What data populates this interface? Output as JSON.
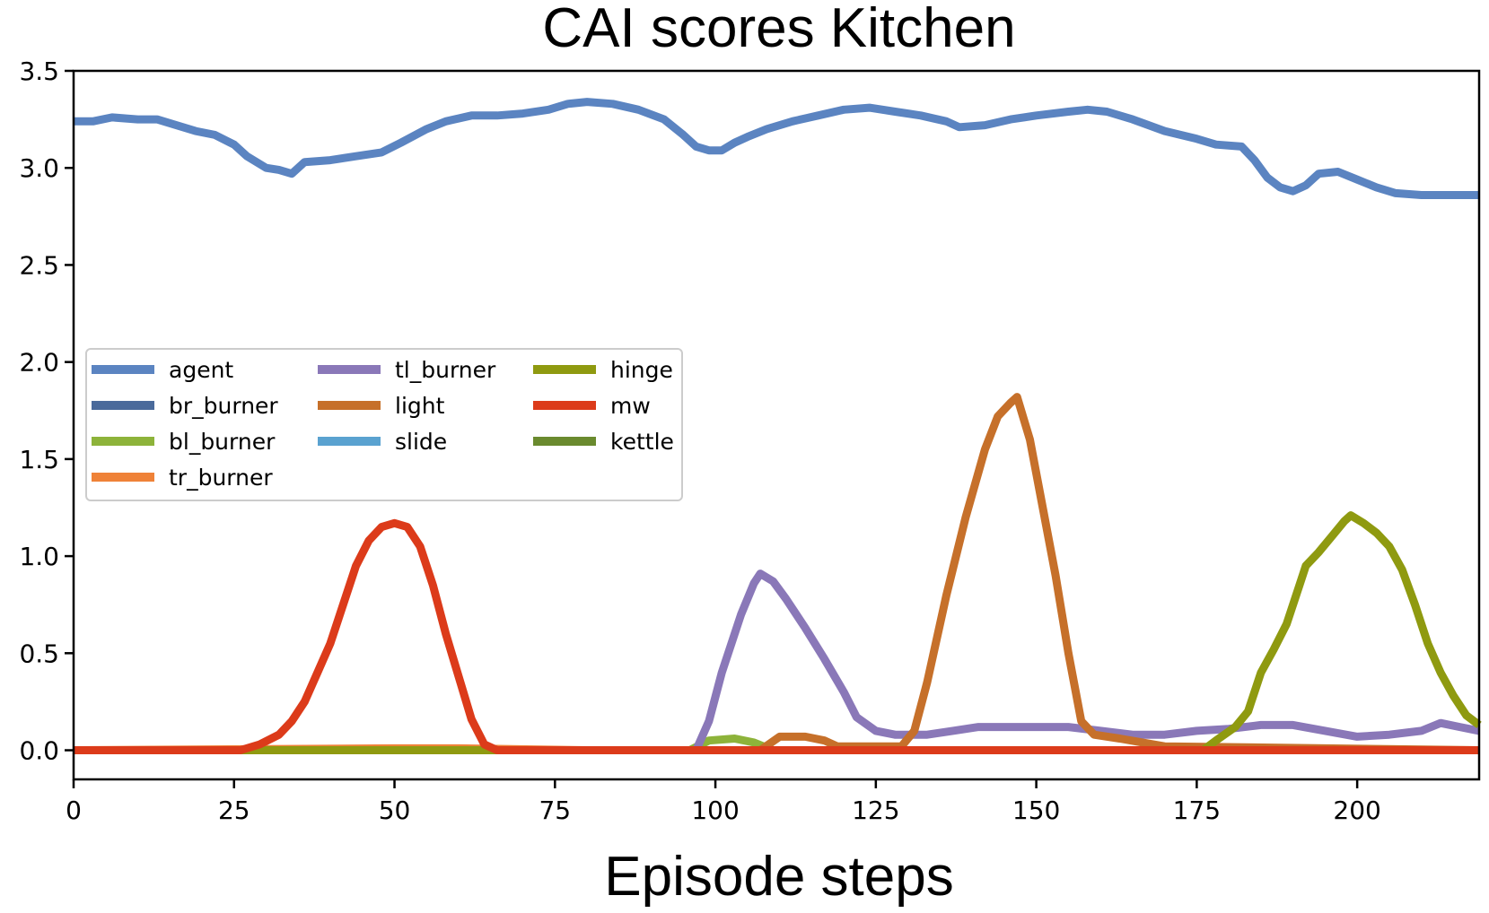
{
  "chart_data": {
    "type": "line",
    "title": "CAI scores Kitchen",
    "xlabel": "Episode steps",
    "ylabel": "",
    "xlim": [
      0,
      219
    ],
    "ylim": [
      -0.15,
      3.5
    ],
    "xticks": [
      0,
      25,
      50,
      75,
      100,
      125,
      150,
      175,
      200
    ],
    "xtick_labels": [
      "0",
      "25",
      "50",
      "75",
      "100",
      "125",
      "150",
      "175",
      "200"
    ],
    "yticks": [
      0.0,
      0.5,
      1.0,
      1.5,
      2.0,
      2.5,
      3.0,
      3.5
    ],
    "ytick_labels": [
      "0.0",
      "0.5",
      "1.0",
      "1.5",
      "2.0",
      "2.5",
      "3.0",
      "3.5"
    ],
    "grid": false,
    "legend_position": "center-left",
    "series": [
      {
        "name": "agent",
        "color": "#5b84c1",
        "points": [
          [
            0,
            3.24
          ],
          [
            3,
            3.24
          ],
          [
            6,
            3.26
          ],
          [
            10,
            3.25
          ],
          [
            13,
            3.25
          ],
          [
            16,
            3.22
          ],
          [
            19,
            3.19
          ],
          [
            22,
            3.17
          ],
          [
            25,
            3.12
          ],
          [
            27,
            3.06
          ],
          [
            30,
            3.0
          ],
          [
            32,
            2.99
          ],
          [
            34,
            2.97
          ],
          [
            36,
            3.03
          ],
          [
            40,
            3.04
          ],
          [
            44,
            3.06
          ],
          [
            48,
            3.08
          ],
          [
            51,
            3.13
          ],
          [
            55,
            3.2
          ],
          [
            58,
            3.24
          ],
          [
            62,
            3.27
          ],
          [
            66,
            3.27
          ],
          [
            70,
            3.28
          ],
          [
            74,
            3.3
          ],
          [
            77,
            3.33
          ],
          [
            80,
            3.34
          ],
          [
            84,
            3.33
          ],
          [
            88,
            3.3
          ],
          [
            92,
            3.25
          ],
          [
            95,
            3.17
          ],
          [
            97,
            3.11
          ],
          [
            99,
            3.09
          ],
          [
            101,
            3.09
          ],
          [
            103,
            3.13
          ],
          [
            105,
            3.16
          ],
          [
            108,
            3.2
          ],
          [
            112,
            3.24
          ],
          [
            116,
            3.27
          ],
          [
            120,
            3.3
          ],
          [
            124,
            3.31
          ],
          [
            128,
            3.29
          ],
          [
            132,
            3.27
          ],
          [
            136,
            3.24
          ],
          [
            138,
            3.21
          ],
          [
            142,
            3.22
          ],
          [
            146,
            3.25
          ],
          [
            150,
            3.27
          ],
          [
            155,
            3.29
          ],
          [
            158,
            3.3
          ],
          [
            161,
            3.29
          ],
          [
            165,
            3.25
          ],
          [
            170,
            3.19
          ],
          [
            175,
            3.15
          ],
          [
            178,
            3.12
          ],
          [
            182,
            3.11
          ],
          [
            184,
            3.04
          ],
          [
            186,
            2.95
          ],
          [
            188,
            2.9
          ],
          [
            190,
            2.88
          ],
          [
            192,
            2.91
          ],
          [
            194,
            2.97
          ],
          [
            197,
            2.98
          ],
          [
            200,
            2.94
          ],
          [
            203,
            2.9
          ],
          [
            206,
            2.87
          ],
          [
            210,
            2.86
          ],
          [
            219,
            2.86
          ]
        ]
      },
      {
        "name": "br_burner",
        "color": "#4a6a9b",
        "points": [
          [
            0,
            0.0
          ],
          [
            219,
            0.0
          ]
        ]
      },
      {
        "name": "bl_burner",
        "color": "#8db33a",
        "points": [
          [
            0,
            0.0
          ],
          [
            96,
            0.0
          ],
          [
            99,
            0.05
          ],
          [
            103,
            0.06
          ],
          [
            106,
            0.04
          ],
          [
            109,
            0.0
          ],
          [
            219,
            0.0
          ]
        ]
      },
      {
        "name": "tr_burner",
        "color": "#ef8238",
        "points": [
          [
            0,
            0.0
          ],
          [
            50,
            0.01
          ],
          [
            60,
            0.01
          ],
          [
            80,
            0.0
          ],
          [
            219,
            0.0
          ]
        ]
      },
      {
        "name": "tl_burner",
        "color": "#8a78b8",
        "points": [
          [
            0,
            0.0
          ],
          [
            97,
            0.0
          ],
          [
            99,
            0.15
          ],
          [
            101,
            0.4
          ],
          [
            104,
            0.7
          ],
          [
            106,
            0.86
          ],
          [
            107,
            0.91
          ],
          [
            109,
            0.87
          ],
          [
            111,
            0.78
          ],
          [
            114,
            0.63
          ],
          [
            117,
            0.47
          ],
          [
            120,
            0.3
          ],
          [
            122,
            0.17
          ],
          [
            125,
            0.1
          ],
          [
            128,
            0.08
          ],
          [
            133,
            0.08
          ],
          [
            137,
            0.1
          ],
          [
            141,
            0.12
          ],
          [
            145,
            0.12
          ],
          [
            150,
            0.12
          ],
          [
            155,
            0.12
          ],
          [
            160,
            0.1
          ],
          [
            165,
            0.08
          ],
          [
            170,
            0.08
          ],
          [
            175,
            0.1
          ],
          [
            180,
            0.11
          ],
          [
            185,
            0.13
          ],
          [
            190,
            0.13
          ],
          [
            195,
            0.1
          ],
          [
            200,
            0.07
          ],
          [
            205,
            0.08
          ],
          [
            210,
            0.1
          ],
          [
            213,
            0.14
          ],
          [
            216,
            0.12
          ],
          [
            219,
            0.1
          ]
        ]
      },
      {
        "name": "light",
        "color": "#c6702a",
        "points": [
          [
            0,
            0.0
          ],
          [
            107,
            0.0
          ],
          [
            110,
            0.07
          ],
          [
            114,
            0.07
          ],
          [
            117,
            0.05
          ],
          [
            119,
            0.02
          ],
          [
            129,
            0.02
          ],
          [
            131,
            0.1
          ],
          [
            133,
            0.35
          ],
          [
            136,
            0.8
          ],
          [
            139,
            1.2
          ],
          [
            142,
            1.55
          ],
          [
            144,
            1.72
          ],
          [
            146,
            1.79
          ],
          [
            147,
            1.82
          ],
          [
            149,
            1.6
          ],
          [
            151,
            1.25
          ],
          [
            153,
            0.9
          ],
          [
            155,
            0.5
          ],
          [
            157,
            0.15
          ],
          [
            159,
            0.08
          ],
          [
            163,
            0.06
          ],
          [
            170,
            0.02
          ],
          [
            219,
            0.0
          ]
        ]
      },
      {
        "name": "slide",
        "color": "#5aa2d0",
        "points": [
          [
            0,
            0.0
          ],
          [
            219,
            0.0
          ]
        ]
      },
      {
        "name": "hinge",
        "color": "#8f9a10",
        "points": [
          [
            0,
            0.0
          ],
          [
            176,
            0.0
          ],
          [
            178,
            0.05
          ],
          [
            181,
            0.12
          ],
          [
            183,
            0.2
          ],
          [
            185,
            0.4
          ],
          [
            187,
            0.52
          ],
          [
            189,
            0.65
          ],
          [
            191,
            0.85
          ],
          [
            192,
            0.95
          ],
          [
            194,
            1.02
          ],
          [
            196,
            1.1
          ],
          [
            198,
            1.18
          ],
          [
            199,
            1.21
          ],
          [
            201,
            1.17
          ],
          [
            203,
            1.12
          ],
          [
            205,
            1.05
          ],
          [
            207,
            0.93
          ],
          [
            209,
            0.75
          ],
          [
            211,
            0.55
          ],
          [
            213,
            0.4
          ],
          [
            215,
            0.28
          ],
          [
            217,
            0.18
          ],
          [
            219,
            0.13
          ]
        ]
      },
      {
        "name": "mw",
        "color": "#dc3b1a",
        "points": [
          [
            0,
            0.0
          ],
          [
            26,
            0.0
          ],
          [
            29,
            0.03
          ],
          [
            32,
            0.08
          ],
          [
            34,
            0.15
          ],
          [
            36,
            0.25
          ],
          [
            38,
            0.4
          ],
          [
            40,
            0.55
          ],
          [
            42,
            0.75
          ],
          [
            44,
            0.95
          ],
          [
            46,
            1.08
          ],
          [
            48,
            1.15
          ],
          [
            50,
            1.17
          ],
          [
            52,
            1.15
          ],
          [
            54,
            1.05
          ],
          [
            56,
            0.85
          ],
          [
            58,
            0.6
          ],
          [
            60,
            0.38
          ],
          [
            62,
            0.16
          ],
          [
            64,
            0.03
          ],
          [
            66,
            0.0
          ],
          [
            219,
            0.0
          ]
        ]
      },
      {
        "name": "kettle",
        "color": "#6a8a2e",
        "points": [
          [
            0,
            0.0
          ],
          [
            219,
            0.0
          ]
        ]
      }
    ]
  },
  "legend": {
    "col1": [
      "agent",
      "br_burner",
      "bl_burner",
      "tr_burner"
    ],
    "col2": [
      "tl_burner",
      "light",
      "slide"
    ],
    "col3": [
      "hinge",
      "mw",
      "kettle"
    ]
  }
}
